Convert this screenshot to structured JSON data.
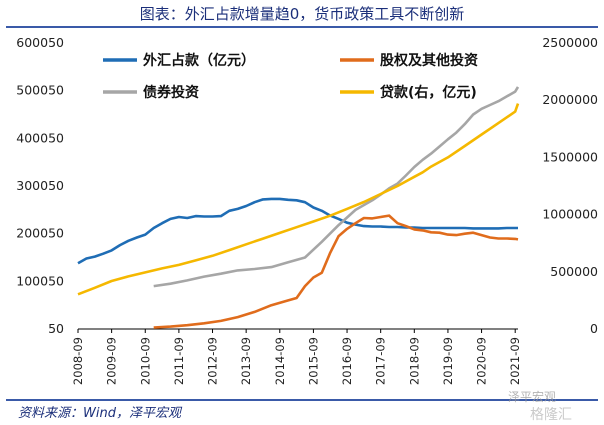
{
  "title": "图表：外汇占款增量趋0，货币政策工具不断创新",
  "source": "资料来源：Wind，泽平宏观",
  "watermark": "泽平宏观",
  "watermark2": "格隆汇",
  "chart_data": {
    "type": "line",
    "x": [
      "2008-09",
      "2009-09",
      "2010-09",
      "2011-09",
      "2012-09",
      "2013-09",
      "2014-09",
      "2015-09",
      "2016-09",
      "2017-09",
      "2018-09",
      "2019-09",
      "2020-09",
      "2021-09"
    ],
    "left_axis": {
      "ticks": [
        50,
        100050,
        200050,
        300050,
        400050,
        500050,
        600050
      ],
      "range": [
        50,
        600050
      ]
    },
    "right_axis": {
      "ticks": [
        0,
        500000,
        1000000,
        1500000,
        2000000,
        2500000
      ],
      "range": [
        0,
        2500000
      ]
    },
    "legend_position": "top",
    "grid": false,
    "series": [
      {
        "name": "外汇占款（亿元）",
        "axis": "left",
        "color": "#1f6db5",
        "points": [
          [
            "2008-09",
            138000
          ],
          [
            "2008-12",
            148000
          ],
          [
            "2009-03",
            152000
          ],
          [
            "2009-06",
            158000
          ],
          [
            "2009-09",
            165000
          ],
          [
            "2009-12",
            176000
          ],
          [
            "2010-03",
            185000
          ],
          [
            "2010-06",
            192000
          ],
          [
            "2010-09",
            198000
          ],
          [
            "2010-12",
            212000
          ],
          [
            "2011-03",
            222000
          ],
          [
            "2011-06",
            231000
          ],
          [
            "2011-09",
            235000
          ],
          [
            "2011-12",
            233000
          ],
          [
            "2012-03",
            237000
          ],
          [
            "2012-06",
            236000
          ],
          [
            "2012-09",
            236000
          ],
          [
            "2012-12",
            237000
          ],
          [
            "2013-03",
            248000
          ],
          [
            "2013-06",
            252000
          ],
          [
            "2013-09",
            258000
          ],
          [
            "2013-12",
            266000
          ],
          [
            "2014-03",
            272000
          ],
          [
            "2014-06",
            273000
          ],
          [
            "2014-09",
            273000
          ],
          [
            "2014-12",
            271000
          ],
          [
            "2015-03",
            270000
          ],
          [
            "2015-06",
            266000
          ],
          [
            "2015-09",
            255000
          ],
          [
            "2015-12",
            248000
          ],
          [
            "2016-03",
            238000
          ],
          [
            "2016-06",
            231000
          ],
          [
            "2016-09",
            223000
          ],
          [
            "2016-12",
            219000
          ],
          [
            "2017-03",
            216000
          ],
          [
            "2017-06",
            215000
          ],
          [
            "2017-09",
            215000
          ],
          [
            "2017-12",
            214000
          ],
          [
            "2018-03",
            214000
          ],
          [
            "2018-06",
            213000
          ],
          [
            "2018-09",
            213000
          ],
          [
            "2018-12",
            212000
          ],
          [
            "2019-03",
            212000
          ],
          [
            "2019-06",
            212000
          ],
          [
            "2019-09",
            212000
          ],
          [
            "2019-12",
            212000
          ],
          [
            "2020-03",
            212000
          ],
          [
            "2020-06",
            211000
          ],
          [
            "2020-09",
            211000
          ],
          [
            "2020-12",
            211000
          ],
          [
            "2021-03",
            211000
          ],
          [
            "2021-06",
            212000
          ],
          [
            "2021-09",
            212000
          ],
          [
            "2021-10",
            212000
          ]
        ]
      },
      {
        "name": "股权及其他投资",
        "axis": "left",
        "color": "#e06c1c",
        "points": [
          [
            "2010-12",
            3000
          ],
          [
            "2011-06",
            5000
          ],
          [
            "2011-12",
            8000
          ],
          [
            "2012-06",
            12000
          ],
          [
            "2012-12",
            17000
          ],
          [
            "2013-06",
            25000
          ],
          [
            "2013-12",
            36000
          ],
          [
            "2014-06",
            50000
          ],
          [
            "2014-12",
            60000
          ],
          [
            "2015-03",
            65000
          ],
          [
            "2015-06",
            90000
          ],
          [
            "2015-09",
            108000
          ],
          [
            "2015-12",
            118000
          ],
          [
            "2016-03",
            160000
          ],
          [
            "2016-06",
            195000
          ],
          [
            "2016-09",
            210000
          ],
          [
            "2016-12",
            222000
          ],
          [
            "2017-03",
            233000
          ],
          [
            "2017-06",
            232000
          ],
          [
            "2017-09",
            235000
          ],
          [
            "2017-12",
            238000
          ],
          [
            "2018-03",
            222000
          ],
          [
            "2018-06",
            216000
          ],
          [
            "2018-09",
            209000
          ],
          [
            "2018-12",
            207000
          ],
          [
            "2019-03",
            203000
          ],
          [
            "2019-06",
            202000
          ],
          [
            "2019-09",
            198000
          ],
          [
            "2019-12",
            197000
          ],
          [
            "2020-03",
            200000
          ],
          [
            "2020-06",
            202000
          ],
          [
            "2020-09",
            197000
          ],
          [
            "2020-12",
            192000
          ],
          [
            "2021-03",
            190000
          ],
          [
            "2021-06",
            190000
          ],
          [
            "2021-09",
            189000
          ],
          [
            "2021-10",
            188000
          ]
        ]
      },
      {
        "name": "债券投资",
        "axis": "left",
        "color": "#a6a6a6",
        "points": [
          [
            "2010-12",
            90000
          ],
          [
            "2011-06",
            95000
          ],
          [
            "2011-12",
            102000
          ],
          [
            "2012-06",
            110000
          ],
          [
            "2012-12",
            116000
          ],
          [
            "2013-06",
            123000
          ],
          [
            "2013-12",
            126000
          ],
          [
            "2014-06",
            130000
          ],
          [
            "2014-12",
            140000
          ],
          [
            "2015-06",
            150000
          ],
          [
            "2015-12",
            183000
          ],
          [
            "2016-06",
            218000
          ],
          [
            "2016-12",
            250000
          ],
          [
            "2017-06",
            270000
          ],
          [
            "2017-09",
            282000
          ],
          [
            "2017-12",
            295000
          ],
          [
            "2018-03",
            305000
          ],
          [
            "2018-06",
            322000
          ],
          [
            "2018-09",
            340000
          ],
          [
            "2018-12",
            355000
          ],
          [
            "2019-03",
            368000
          ],
          [
            "2019-06",
            383000
          ],
          [
            "2019-09",
            398000
          ],
          [
            "2019-12",
            412000
          ],
          [
            "2020-03",
            430000
          ],
          [
            "2020-06",
            450000
          ],
          [
            "2020-09",
            462000
          ],
          [
            "2020-12",
            470000
          ],
          [
            "2021-03",
            478000
          ],
          [
            "2021-06",
            488000
          ],
          [
            "2021-09",
            498000
          ],
          [
            "2021-10",
            508000
          ]
        ]
      },
      {
        "name": "贷款(右，亿元)",
        "axis": "right",
        "color": "#f5b800",
        "points": [
          [
            "2008-09",
            303000
          ],
          [
            "2009-03",
            360000
          ],
          [
            "2009-09",
            420000
          ],
          [
            "2010-03",
            460000
          ],
          [
            "2010-09",
            495000
          ],
          [
            "2011-03",
            530000
          ],
          [
            "2011-09",
            560000
          ],
          [
            "2012-03",
            600000
          ],
          [
            "2012-09",
            640000
          ],
          [
            "2013-03",
            690000
          ],
          [
            "2013-09",
            740000
          ],
          [
            "2014-03",
            790000
          ],
          [
            "2014-09",
            840000
          ],
          [
            "2015-03",
            890000
          ],
          [
            "2015-09",
            940000
          ],
          [
            "2016-03",
            990000
          ],
          [
            "2016-09",
            1050000
          ],
          [
            "2017-03",
            1110000
          ],
          [
            "2017-09",
            1180000
          ],
          [
            "2018-03",
            1250000
          ],
          [
            "2018-09",
            1330000
          ],
          [
            "2018-12",
            1370000
          ],
          [
            "2019-03",
            1420000
          ],
          [
            "2019-09",
            1500000
          ],
          [
            "2020-03",
            1600000
          ],
          [
            "2020-09",
            1700000
          ],
          [
            "2021-03",
            1800000
          ],
          [
            "2021-09",
            1900000
          ],
          [
            "2021-10",
            1970000
          ]
        ]
      }
    ]
  }
}
